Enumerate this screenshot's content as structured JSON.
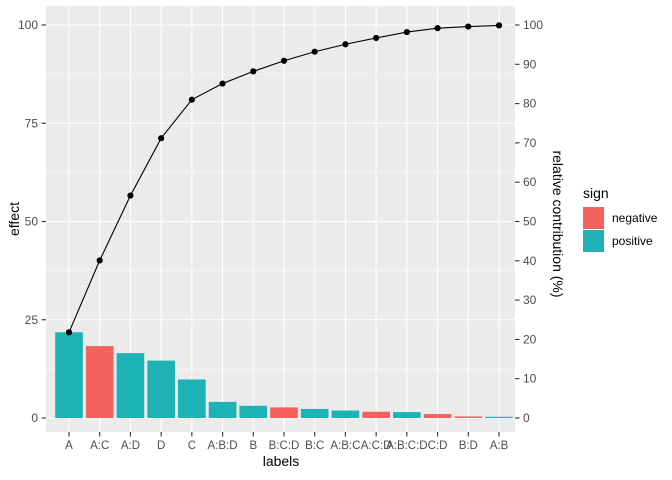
{
  "figure": {
    "background": "#FFFFFF",
    "panel_background": "#EBEBEB",
    "grid_major_color": "#FFFFFF",
    "grid_minor_color": "rgba(255,255,255,0.55)",
    "tick_mark_color": "#333333",
    "tick_label_color": "#4D4D4D",
    "line_color": "#000000"
  },
  "chart_data": {
    "type": "bar",
    "subtype": "pareto-with-cumulative-line",
    "categories": [
      "A",
      "A:C",
      "A:D",
      "D",
      "C",
      "A:B:D",
      "B",
      "B:C:D",
      "B:C",
      "A:B:C",
      "A:C:D",
      "A:B:C:D",
      "C:D",
      "B:D",
      "A:B"
    ],
    "series": [
      {
        "name": "effect",
        "type": "bar",
        "values": [
          21.8,
          18.3,
          16.5,
          14.6,
          9.8,
          4.1,
          3.1,
          2.7,
          2.3,
          1.9,
          1.6,
          1.5,
          1.0,
          0.4,
          0.3
        ]
      },
      {
        "name": "cumulative relative contribution (%)",
        "type": "line",
        "values": [
          21.8,
          40.1,
          56.6,
          71.2,
          81.0,
          85.1,
          88.2,
          90.9,
          93.2,
          95.1,
          96.7,
          98.2,
          99.2,
          99.6,
          99.9
        ]
      }
    ],
    "bar_signs": [
      "positive",
      "negative",
      "positive",
      "positive",
      "positive",
      "positive",
      "positive",
      "negative",
      "positive",
      "positive",
      "negative",
      "positive",
      "negative",
      "negative",
      "positive"
    ],
    "xlabel": "labels",
    "ylabel_left": "effect",
    "ylabel_right": "relative contribution (%)",
    "ylim": [
      0,
      100
    ],
    "left_axis_ticks": [
      0,
      25,
      50,
      75,
      100
    ],
    "right_axis_ticks": [
      0,
      10,
      20,
      30,
      40,
      50,
      60,
      70,
      80,
      90,
      100
    ],
    "grid": "horizontal major every 25 + minor every 12.5; vertical major at each category",
    "legend": {
      "title": "sign",
      "position": "right",
      "entries": [
        {
          "label": "negative",
          "color": "#F3625D"
        },
        {
          "label": "positive",
          "color": "#1DB2B5"
        }
      ]
    }
  }
}
